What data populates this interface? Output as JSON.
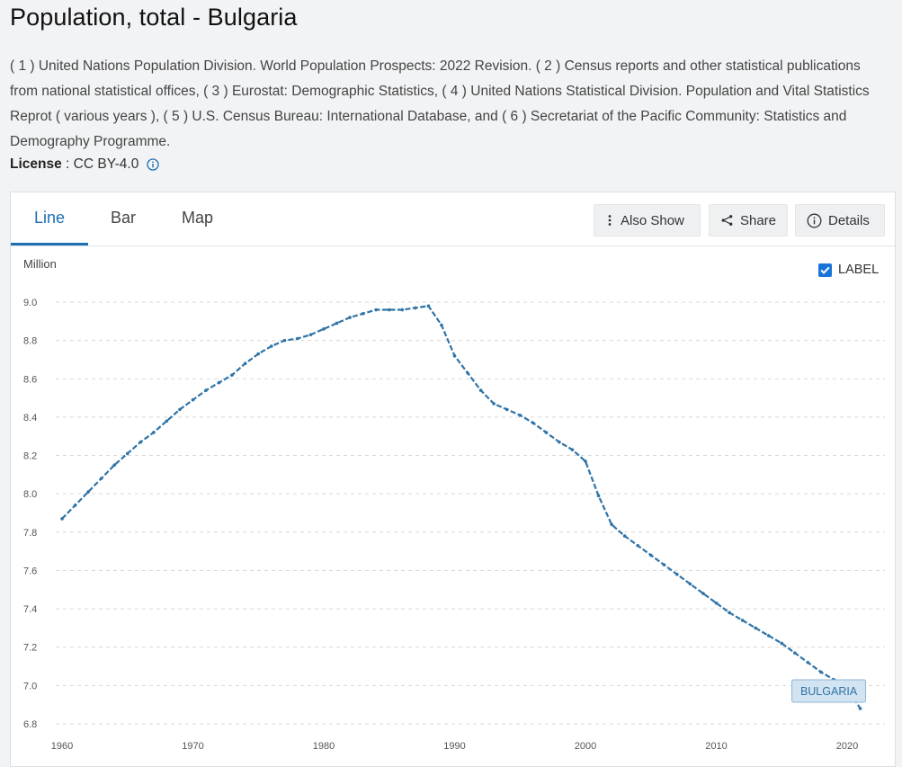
{
  "header": {
    "title": "Population, total - Bulgaria",
    "sources": "( 1 ) United Nations Population Division. World Population Prospects: 2022 Revision. ( 2 ) Census reports and other statistical publications from national statistical offices, ( 3 ) Eurostat: Demographic Statistics, ( 4 ) United Nations Statistical Division. Population and Vital Statistics Reprot ( various years ), ( 5 ) U.S. Census Bureau: International Database, and ( 6 ) Secretariat of the Pacific Community: Statistics and Demography Programme.",
    "license_label": "License",
    "license_sep": " : ",
    "license_value": "CC BY-4.0"
  },
  "tabs": [
    {
      "label": "Line",
      "active": true
    },
    {
      "label": "Bar",
      "active": false
    },
    {
      "label": "Map",
      "active": false
    }
  ],
  "actions": {
    "also_show": "Also Show",
    "share": "Share",
    "details": "Details"
  },
  "label_toggle": {
    "label": "LABEL",
    "checked": true
  },
  "colors": {
    "accent": "#1d6fb2",
    "line": "#2f74a8",
    "checkbox": "#1a73d9"
  },
  "chart_data": {
    "type": "line",
    "ylabel": "Million",
    "ylim": [
      6.8,
      9.0
    ],
    "yticks": [
      6.8,
      7.0,
      7.2,
      7.4,
      7.6,
      7.8,
      8.0,
      8.2,
      8.4,
      8.6,
      8.8,
      9.0
    ],
    "xticks": [
      1960,
      1970,
      1980,
      1990,
      2000,
      2010,
      2020
    ],
    "grid": true,
    "series": [
      {
        "name": "BULGARIA",
        "x": [
          1960,
          1961,
          1962,
          1963,
          1964,
          1965,
          1966,
          1967,
          1968,
          1969,
          1970,
          1971,
          1972,
          1973,
          1974,
          1975,
          1976,
          1977,
          1978,
          1979,
          1980,
          1981,
          1982,
          1983,
          1984,
          1985,
          1986,
          1987,
          1988,
          1989,
          1990,
          1991,
          1992,
          1993,
          1994,
          1995,
          1996,
          1997,
          1998,
          1999,
          2000,
          2001,
          2002,
          2003,
          2004,
          2005,
          2006,
          2007,
          2008,
          2009,
          2010,
          2011,
          2012,
          2013,
          2014,
          2015,
          2016,
          2017,
          2018,
          2019,
          2020,
          2021
        ],
        "values": [
          7.87,
          7.94,
          8.01,
          8.08,
          8.15,
          8.21,
          8.27,
          8.32,
          8.38,
          8.44,
          8.49,
          8.54,
          8.58,
          8.62,
          8.68,
          8.73,
          8.77,
          8.8,
          8.81,
          8.83,
          8.86,
          8.89,
          8.92,
          8.94,
          8.96,
          8.96,
          8.96,
          8.97,
          8.98,
          8.88,
          8.72,
          8.63,
          8.54,
          8.47,
          8.44,
          8.41,
          8.37,
          8.32,
          8.27,
          8.23,
          8.17,
          7.99,
          7.84,
          7.78,
          7.73,
          7.68,
          7.63,
          7.58,
          7.53,
          7.48,
          7.43,
          7.38,
          7.34,
          7.3,
          7.26,
          7.22,
          7.17,
          7.12,
          7.07,
          7.03,
          6.99,
          6.88
        ]
      }
    ]
  }
}
